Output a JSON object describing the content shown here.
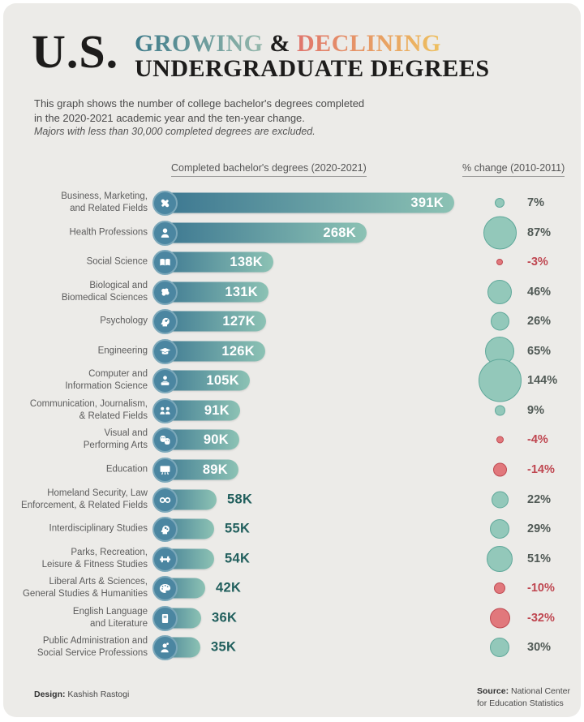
{
  "header": {
    "brand": "U.S.",
    "title_growing": "GROWING",
    "title_amp": " & ",
    "title_declining": "DECLINING",
    "title_line2": "UNDERGRADUATE DEGREES",
    "description_line1": "This graph shows the number of college bachelor's degrees completed",
    "description_line2": "in the 2020-2021 academic year and the ten-year change.",
    "note": "Majors with less than 30,000 completed degrees are excluded."
  },
  "columns": {
    "bars_header": "Completed bachelor's degrees (2020-2021)",
    "change_header": "% change (2010-2011)"
  },
  "chart_data": {
    "type": "bar",
    "title": "U.S. Growing & Declining Undergraduate Degrees",
    "xlabel": "Completed bachelor's degrees (2020-2021)",
    "ylabel": "% change (2010-2011)",
    "unit": "K = thousands of degrees",
    "rows": [
      {
        "label_lines": [
          "Business, Marketing,",
          "and Related Fields"
        ],
        "icon": "handshake-icon",
        "value_k": 391,
        "value_label": "391K",
        "change_pct": 7,
        "change_label": "7%"
      },
      {
        "label_lines": [
          "Health Professions"
        ],
        "icon": "health-person-icon",
        "value_k": 268,
        "value_label": "268K",
        "change_pct": 87,
        "change_label": "87%"
      },
      {
        "label_lines": [
          "Social Science"
        ],
        "icon": "open-book-icon",
        "value_k": 138,
        "value_label": "138K",
        "change_pct": -3,
        "change_label": "-3%"
      },
      {
        "label_lines": [
          "Biological and",
          "Biomedical Sciences"
        ],
        "icon": "brain-icon",
        "value_k": 131,
        "value_label": "131K",
        "change_pct": 46,
        "change_label": "46%"
      },
      {
        "label_lines": [
          "Psychology"
        ],
        "icon": "psychology-head-icon",
        "value_k": 127,
        "value_label": "127K",
        "change_pct": 26,
        "change_label": "26%"
      },
      {
        "label_lines": [
          "Engineering"
        ],
        "icon": "graduation-cap-icon",
        "value_k": 126,
        "value_label": "126K",
        "change_pct": 65,
        "change_label": "65%"
      },
      {
        "label_lines": [
          "Computer and",
          "Information Science"
        ],
        "icon": "person-computer-icon",
        "value_k": 105,
        "value_label": "105K",
        "change_pct": 144,
        "change_label": "144%"
      },
      {
        "label_lines": [
          "Communication, Journalism,",
          "& Related Fields"
        ],
        "icon": "people-talking-icon",
        "value_k": 91,
        "value_label": "91K",
        "change_pct": 9,
        "change_label": "9%"
      },
      {
        "label_lines": [
          "Visual and",
          "Performing Arts"
        ],
        "icon": "theater-masks-icon",
        "value_k": 90,
        "value_label": "90K",
        "change_pct": -4,
        "change_label": "-4%"
      },
      {
        "label_lines": [
          "Education"
        ],
        "icon": "chalkboard-icon",
        "value_k": 89,
        "value_label": "89K",
        "change_pct": -14,
        "change_label": "-14%"
      },
      {
        "label_lines": [
          "Homeland Security, Law",
          "Enforcement, & Related Fields"
        ],
        "icon": "handcuffs-icon",
        "value_k": 58,
        "value_label": "58K",
        "change_pct": 22,
        "change_label": "22%"
      },
      {
        "label_lines": [
          "Interdisciplinary Studies"
        ],
        "icon": "head-gears-icon",
        "value_k": 55,
        "value_label": "55K",
        "change_pct": 29,
        "change_label": "29%"
      },
      {
        "label_lines": [
          "Parks, Recreation,",
          "Leisure & Fitness Studies"
        ],
        "icon": "dumbbell-icon",
        "value_k": 54,
        "value_label": "54K",
        "change_pct": 51,
        "change_label": "51%"
      },
      {
        "label_lines": [
          "Liberal Arts & Sciences,",
          "General Studies & Humanities"
        ],
        "icon": "palette-icon",
        "value_k": 42,
        "value_label": "42K",
        "change_pct": -10,
        "change_label": "-10%"
      },
      {
        "label_lines": [
          "English Language",
          "and Literature"
        ],
        "icon": "book-icon",
        "value_k": 36,
        "value_label": "36K",
        "change_pct": -32,
        "change_label": "-32%"
      },
      {
        "label_lines": [
          "Public Administration and",
          "Social Service Professions"
        ],
        "icon": "person-idea-icon",
        "value_k": 35,
        "value_label": "35K",
        "change_pct": 30,
        "change_label": "30%"
      }
    ]
  },
  "footer": {
    "design_label": "Design:",
    "design_name": " Kashish Rastogi",
    "source_label": "Source:",
    "source_line1": " National Center",
    "source_line2": "for Education Statistics"
  },
  "colors": {
    "background": "#ECEBE8",
    "title_teal_start": "#3e7b8a",
    "title_teal_end": "#95b8ac",
    "title_warm_start": "#e0756c",
    "title_warm_end": "#eec05f",
    "bar_gradient_start": "#3a7590",
    "bar_gradient_end": "#8cc2b4",
    "icon_circle": "#4b86a1",
    "value_outside_text": "#215f5d",
    "bubble_positive": "#93c8ba",
    "bubble_positive_border": "#5fa89a",
    "bubble_negative": "#e1787c",
    "bubble_negative_border": "#bf4a52",
    "pct_positive_text": "#515a56",
    "pct_negative_text": "#bf4650"
  }
}
